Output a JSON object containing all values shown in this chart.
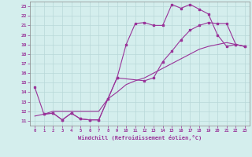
{
  "xlabel": "Windchill (Refroidissement éolien,°C)",
  "line1_x": [
    0,
    1,
    2,
    3,
    4,
    5,
    6,
    7,
    8,
    9,
    10,
    11,
    12,
    13,
    14,
    15,
    16,
    17,
    18,
    19,
    20,
    21,
    22,
    23
  ],
  "line1_y": [
    14.5,
    11.7,
    11.8,
    11.1,
    11.8,
    11.2,
    11.1,
    11.1,
    13.3,
    15.5,
    19.0,
    21.2,
    21.3,
    21.0,
    21.0,
    23.2,
    22.8,
    23.2,
    22.7,
    22.2,
    20.0,
    18.8,
    19.0,
    18.8
  ],
  "line2_x": [
    1,
    2,
    3,
    4,
    5,
    6,
    7,
    8,
    9,
    12,
    13,
    14,
    15,
    16,
    17,
    18,
    19,
    20,
    21,
    22,
    23
  ],
  "line2_y": [
    11.7,
    11.8,
    11.1,
    11.8,
    11.2,
    11.1,
    11.1,
    13.3,
    15.5,
    15.2,
    15.5,
    17.2,
    18.3,
    19.5,
    20.5,
    21.0,
    21.3,
    21.2,
    21.2,
    19.0,
    18.8
  ],
  "line3_x": [
    0,
    1,
    2,
    3,
    4,
    5,
    6,
    7,
    8,
    9,
    10,
    11,
    12,
    13,
    14,
    15,
    16,
    17,
    18,
    19,
    20,
    21,
    22,
    23
  ],
  "line3_y": [
    11.5,
    11.7,
    12.0,
    12.0,
    12.0,
    12.0,
    12.0,
    12.0,
    13.3,
    14.0,
    14.8,
    15.2,
    15.5,
    16.0,
    16.5,
    17.0,
    17.5,
    18.0,
    18.5,
    18.8,
    19.0,
    19.2,
    19.0,
    18.8
  ],
  "color": "#993399",
  "bg_color": "#d4eeed",
  "grid_color": "#b8d8d8",
  "xlim": [
    -0.5,
    23.5
  ],
  "ylim": [
    10.5,
    23.5
  ],
  "xticks": [
    0,
    1,
    2,
    3,
    4,
    5,
    6,
    7,
    8,
    9,
    10,
    11,
    12,
    13,
    14,
    15,
    16,
    17,
    18,
    19,
    20,
    21,
    22,
    23
  ],
  "yticks": [
    11,
    12,
    13,
    14,
    15,
    16,
    17,
    18,
    19,
    20,
    21,
    22,
    23
  ]
}
